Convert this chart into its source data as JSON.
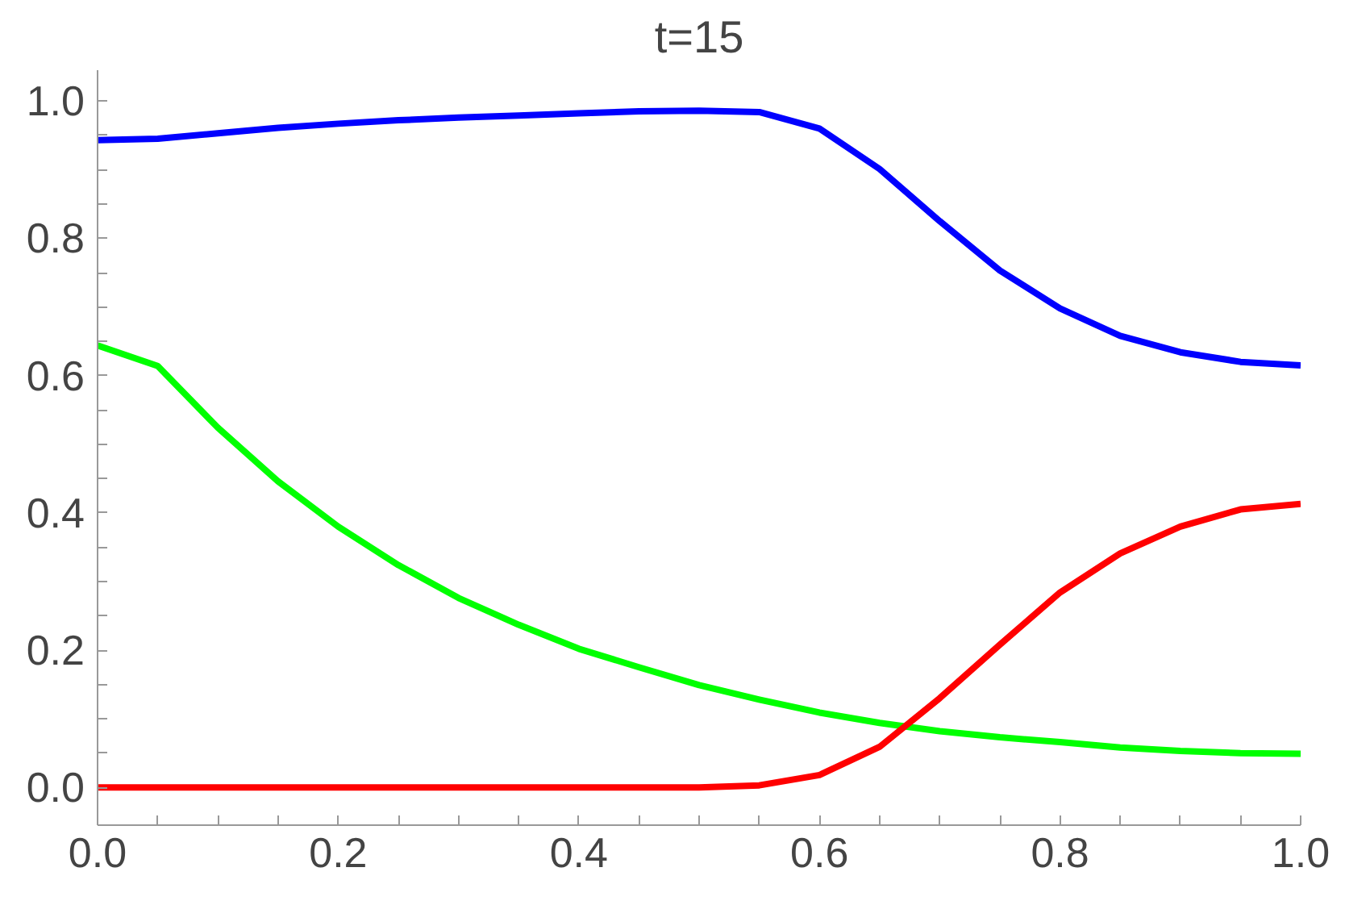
{
  "chart_data": {
    "type": "line",
    "title": "t=15",
    "x": [
      0,
      0.05,
      0.1,
      0.15,
      0.2,
      0.25,
      0.3,
      0.35,
      0.4,
      0.45,
      0.5,
      0.55,
      0.6,
      0.65,
      0.7,
      0.75,
      0.8,
      0.85,
      0.9,
      0.95,
      1.0
    ],
    "series": [
      {
        "color": "#0000ff",
        "values": [
          0.943,
          0.945,
          0.953,
          0.961,
          0.967,
          0.972,
          0.976,
          0.979,
          0.982,
          0.985,
          0.986,
          0.984,
          0.96,
          0.901,
          0.825,
          0.753,
          0.698,
          0.658,
          0.634,
          0.62,
          0.615
        ]
      },
      {
        "color": "#00ff00",
        "values": [
          0.644,
          0.614,
          0.524,
          0.446,
          0.38,
          0.324,
          0.276,
          0.237,
          0.202,
          0.175,
          0.149,
          0.128,
          0.109,
          0.094,
          0.082,
          0.073,
          0.066,
          0.058,
          0.053,
          0.05,
          0.049
        ]
      },
      {
        "color": "#ff0000",
        "values": [
          0,
          0,
          0,
          0,
          0,
          0,
          0,
          0,
          0,
          0,
          0,
          0.003,
          0.018,
          0.059,
          0.13,
          0.208,
          0.284,
          0.341,
          0.38,
          0.405,
          0.413
        ]
      }
    ],
    "xlim": [
      0,
      1.0
    ],
    "ylim": [
      -0.055,
      1.045
    ],
    "xticks": [
      {
        "value": 0,
        "label": "0.0"
      },
      {
        "value": 0.05,
        "label": null
      },
      {
        "value": 0.1,
        "label": null
      },
      {
        "value": 0.15,
        "label": null
      },
      {
        "value": 0.2,
        "label": "0.2"
      },
      {
        "value": 0.25,
        "label": null
      },
      {
        "value": 0.3,
        "label": null
      },
      {
        "value": 0.35,
        "label": null
      },
      {
        "value": 0.4,
        "label": "0.4"
      },
      {
        "value": 0.45,
        "label": null
      },
      {
        "value": 0.5,
        "label": null
      },
      {
        "value": 0.55,
        "label": null
      },
      {
        "value": 0.6,
        "label": "0.6"
      },
      {
        "value": 0.65,
        "label": null
      },
      {
        "value": 0.7,
        "label": null
      },
      {
        "value": 0.75,
        "label": null
      },
      {
        "value": 0.8,
        "label": "0.8"
      },
      {
        "value": 0.85,
        "label": null
      },
      {
        "value": 0.9,
        "label": null
      },
      {
        "value": 0.95,
        "label": null
      },
      {
        "value": 1.0,
        "label": "1.0"
      }
    ],
    "yticks": [
      {
        "value": 0,
        "label": "0.0"
      },
      {
        "value": 0.05,
        "label": null
      },
      {
        "value": 0.1,
        "label": null
      },
      {
        "value": 0.15,
        "label": null
      },
      {
        "value": 0.2,
        "label": "0.2"
      },
      {
        "value": 0.25,
        "label": null
      },
      {
        "value": 0.3,
        "label": null
      },
      {
        "value": 0.35,
        "label": null
      },
      {
        "value": 0.4,
        "label": "0.4"
      },
      {
        "value": 0.45,
        "label": null
      },
      {
        "value": 0.5,
        "label": null
      },
      {
        "value": 0.55,
        "label": null
      },
      {
        "value": 0.6,
        "label": "0.6"
      },
      {
        "value": 0.65,
        "label": null
      },
      {
        "value": 0.7,
        "label": null
      },
      {
        "value": 0.75,
        "label": null
      },
      {
        "value": 0.8,
        "label": "0.8"
      },
      {
        "value": 0.85,
        "label": null
      },
      {
        "value": 0.9,
        "label": null
      },
      {
        "value": 0.95,
        "label": null
      },
      {
        "value": 1.0,
        "label": "1.0"
      }
    ],
    "grid": false,
    "line_style": "solid"
  }
}
